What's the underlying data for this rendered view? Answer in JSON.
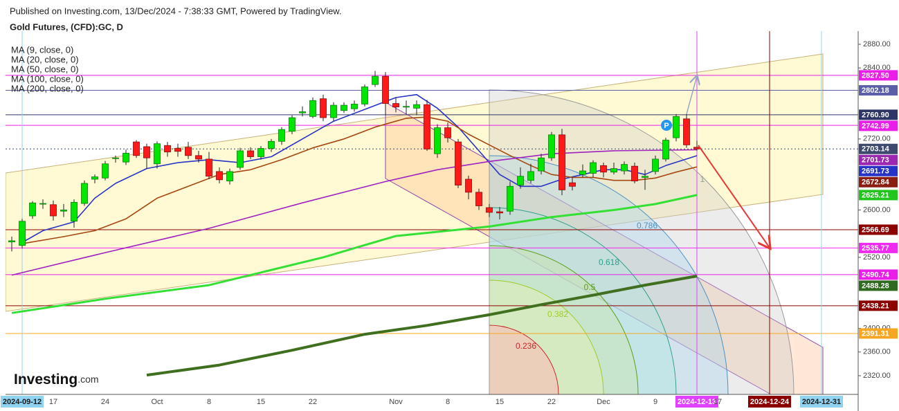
{
  "header": {
    "published": "Published on Investing.com, 13/Dec/2024 - 7:38:33 GMT, Powered by TradingView.",
    "symbol": "Gold Futures, (CFD):GC, D",
    "logo_main": "Investing",
    "logo_suffix": ".com"
  },
  "annotations": {
    "fib_levels": [
      {
        "label": "0.786",
        "color": "#4a90c2"
      },
      {
        "label": "0.618",
        "color": "#2e9e8c"
      },
      {
        "label": "0.5",
        "color": "#5a9e1a"
      },
      {
        "label": "0.382",
        "color": "#9ccc2a"
      },
      {
        "label": "0.236",
        "color": "#c62828"
      }
    ],
    "fib_end": "1",
    "marker": "P"
  },
  "chart_data": {
    "type": "candlestick",
    "up_color": "#00e600",
    "down_color": "#ff1a1a",
    "categories": [
      null,
      "2024-09-12",
      null,
      null,
      "17",
      null,
      null,
      null,
      null,
      "24",
      null,
      null,
      null,
      null,
      "Oct",
      null,
      null,
      null,
      null,
      "8",
      null,
      null,
      null,
      null,
      "15",
      null,
      null,
      null,
      null,
      "22",
      null,
      null,
      null,
      null,
      null,
      null,
      null,
      "Nov",
      null,
      null,
      null,
      null,
      "8",
      null,
      null,
      null,
      null,
      "15",
      null,
      null,
      null,
      null,
      "22",
      null,
      null,
      null,
      null,
      "Dec",
      null,
      null,
      null,
      null,
      "9",
      null,
      null,
      null,
      "2024-12-13",
      null,
      "17",
      null,
      null,
      null,
      null,
      "2024-12-24",
      null,
      null,
      null,
      null,
      "2024-12-31",
      null,
      null,
      null
    ],
    "open": [
      2546,
      2540,
      2590,
      2610,
      2609,
      2598,
      2581,
      2611,
      2652,
      2654,
      2687,
      2681,
      2715,
      2707,
      2678,
      2709,
      2704,
      2706,
      2692,
      2686,
      2665,
      2649,
      2672,
      2700,
      2690,
      2704,
      2716,
      2733,
      2764,
      2758,
      2788,
      2756,
      2768,
      2771,
      2779,
      2812,
      2826,
      2780,
      2774,
      2772,
      2778,
      2695,
      2739,
      2715,
      2652,
      2630,
      2604,
      2597,
      2598,
      2642,
      2650,
      2666,
      2688,
      2727,
      2646,
      2660,
      2662,
      2675,
      2664,
      2666,
      2674,
      2655,
      2665,
      2686,
      2722,
      2754,
      2706,
      null,
      null,
      null,
      null,
      null,
      null,
      null,
      null,
      null,
      null,
      null,
      null,
      null,
      null,
      null
    ],
    "high": [
      2555,
      2585,
      2615,
      2618,
      2616,
      2610,
      2618,
      2650,
      2660,
      2683,
      2692,
      2702,
      2718,
      2712,
      2716,
      2715,
      2712,
      2715,
      2700,
      2698,
      2672,
      2670,
      2705,
      2706,
      2708,
      2720,
      2740,
      2760,
      2775,
      2790,
      2795,
      2782,
      2782,
      2785,
      2812,
      2835,
      2833,
      2790,
      2785,
      2785,
      2786,
      2745,
      2748,
      2720,
      2658,
      2636,
      2610,
      2605,
      2648,
      2672,
      2678,
      2695,
      2732,
      2737,
      2655,
      2677,
      2684,
      2680,
      2680,
      2682,
      2680,
      2668,
      2692,
      2722,
      2762,
      2762,
      2717,
      null,
      null,
      null,
      null,
      null,
      null,
      null,
      null,
      null,
      null,
      null,
      null,
      null,
      null,
      null
    ],
    "low": [
      2530,
      2535,
      2585,
      2602,
      2582,
      2588,
      2570,
      2607,
      2645,
      2650,
      2680,
      2676,
      2688,
      2670,
      2670,
      2690,
      2690,
      2686,
      2680,
      2652,
      2645,
      2643,
      2668,
      2686,
      2685,
      2698,
      2710,
      2728,
      2758,
      2755,
      2750,
      2750,
      2764,
      2766,
      2775,
      2808,
      2760,
      2765,
      2762,
      2760,
      2700,
      2688,
      2714,
      2637,
      2618,
      2600,
      2588,
      2584,
      2592,
      2636,
      2645,
      2660,
      2683,
      2625,
      2633,
      2655,
      2655,
      2655,
      2660,
      2660,
      2645,
      2634,
      2660,
      2682,
      2716,
      2705,
      2700,
      null,
      null,
      null,
      null,
      null,
      null,
      null,
      null,
      null,
      null,
      null,
      null,
      null,
      null,
      null
    ],
    "close": [
      2548,
      2581,
      2612,
      2611,
      2590,
      2600,
      2613,
      2645,
      2656,
      2678,
      2688,
      2696,
      2692,
      2688,
      2712,
      2698,
      2699,
      2692,
      2686,
      2657,
      2651,
      2665,
      2700,
      2690,
      2704,
      2716,
      2736,
      2756,
      2766,
      2785,
      2756,
      2777,
      2777,
      2779,
      2808,
      2826,
      2780,
      2774,
      2775,
      2778,
      2703,
      2739,
      2722,
      2642,
      2630,
      2607,
      2596,
      2595,
      2640,
      2657,
      2665,
      2688,
      2727,
      2634,
      2640,
      2666,
      2680,
      2664,
      2670,
      2677,
      2649,
      2657,
      2686,
      2718,
      2758,
      2710,
      2703.14,
      null,
      null,
      null,
      null,
      null,
      null,
      null,
      null,
      null,
      null,
      null,
      null,
      null,
      null,
      null
    ],
    "series": [
      {
        "name": "MA (9, close, 0)",
        "color": "#2633c4",
        "width": 1.6,
        "x": [
          1,
          3,
          6,
          8,
          10,
          13,
          16,
          19,
          22,
          25,
          28,
          31,
          34,
          37,
          39,
          41,
          43,
          45,
          47,
          49,
          51,
          53,
          55,
          57,
          59,
          61,
          63,
          66
        ],
        "values": [
          2545,
          2565,
          2580,
          2620,
          2645,
          2670,
          2680,
          2685,
          2680,
          2690,
          2720,
          2750,
          2770,
          2790,
          2795,
          2772,
          2740,
          2700,
          2660,
          2640,
          2640,
          2652,
          2660,
          2668,
          2668,
          2660,
          2675,
          2691.73
        ]
      },
      {
        "name": "MA (20, close, 0)",
        "color": "#a5470f",
        "width": 1.6,
        "x": [
          1,
          5,
          8,
          11,
          14,
          17,
          20,
          23,
          26,
          29,
          32,
          35,
          38,
          40,
          42,
          44,
          46,
          48,
          50,
          52,
          54,
          56,
          58,
          60,
          62,
          64,
          66
        ],
        "values": [
          2543,
          2555,
          2565,
          2585,
          2620,
          2640,
          2660,
          2668,
          2685,
          2705,
          2720,
          2740,
          2755,
          2757,
          2750,
          2728,
          2710,
          2692,
          2675,
          2660,
          2655,
          2655,
          2650,
          2650,
          2654,
          2664,
          2672.84
        ]
      },
      {
        "name": "MA (50, close, 0)",
        "color": "#a020c0",
        "width": 1.6,
        "x": [
          0,
          9,
          19,
          28,
          36,
          41,
          46,
          52,
          58,
          66
        ],
        "values": [
          2490,
          2528,
          2569,
          2612,
          2648,
          2668,
          2682,
          2695,
          2700,
          2701.73
        ]
      },
      {
        "name": "MA (100, close, 0)",
        "color": "#33e033",
        "width": 3,
        "x": [
          0,
          9,
          19,
          30,
          37,
          46,
          52,
          58,
          62,
          66
        ],
        "values": [
          2426,
          2450,
          2473,
          2520,
          2556,
          2572,
          2588,
          2600,
          2610,
          2625.21
        ]
      },
      {
        "name": "MA (200, close, 0)",
        "color": "#3f6f1f",
        "width": 4,
        "x": [
          13,
          20,
          27,
          34,
          40,
          46,
          51,
          56,
          61,
          66
        ],
        "values": [
          2321,
          2338,
          2363,
          2390,
          2405,
          2423,
          2440,
          2456,
          2473,
          2488.28
        ]
      }
    ],
    "vlines": [
      {
        "category": 1,
        "color": "#8fd3f0",
        "text_color": "#1a1a1a"
      },
      {
        "category": 66,
        "color": "#e040fb",
        "text_color": "#ffffff"
      },
      {
        "category": 73,
        "color": "#8b0000",
        "text_color": "#ffffff"
      },
      {
        "category": 78,
        "color": "#8fd3f0",
        "text_color": "#1a1a1a"
      }
    ],
    "price_levels": [
      {
        "value": 2827.5,
        "label": "2827.50",
        "color": "#e91ee9",
        "line": "solid"
      },
      {
        "value": 2802.18,
        "label": "2802.18",
        "color": "#5b5fa8",
        "line": "solid"
      },
      {
        "value": 2760.9,
        "label": "2760.90",
        "color": "#2d3566",
        "line": "solid"
      },
      {
        "value": 2742.99,
        "label": "2742.99",
        "color": "#e91ee9",
        "line": "solid"
      },
      {
        "value": 2703.14,
        "label": "2703.14",
        "color": "#3d4a6e",
        "line": "dotted"
      },
      {
        "value": 2701.73,
        "label": "2701.73",
        "color": "#9c27b0",
        "line": "none"
      },
      {
        "value": 2691.73,
        "label": "2691.73",
        "color": "#2633c4",
        "line": "none"
      },
      {
        "value": 2672.84,
        "label": "2672.84",
        "color": "#8b1e12",
        "line": "none"
      },
      {
        "value": 2625.21,
        "label": "2625.21",
        "color": "#22c41e",
        "line": "none"
      },
      {
        "value": 2566.69,
        "label": "2566.69",
        "color": "#8b0000",
        "line": "solid"
      },
      {
        "value": 2535.77,
        "label": "2535.77",
        "color": "#ee2bee",
        "line": "solid"
      },
      {
        "value": 2490.74,
        "label": "2490.74",
        "color": "#e91ee9",
        "line": "solid"
      },
      {
        "value": 2488.28,
        "label": "2488.28",
        "color": "#2e6b1e",
        "line": "none"
      },
      {
        "value": 2438.21,
        "label": "2438.21",
        "color": "#8b0000",
        "line": "solid"
      },
      {
        "value": 2391.31,
        "label": "2391.31",
        "color": "#f5a623",
        "line": "solid"
      }
    ],
    "ylim": [
      2288.4,
      2902.2
    ],
    "yticks": [
      {
        "value": 2880,
        "label": "2880.00"
      },
      {
        "value": 2840,
        "label": "2840.00"
      },
      {
        "value": 2720,
        "label": "2720.00"
      },
      {
        "value": 2600,
        "label": "2600.00"
      },
      {
        "value": 2520,
        "label": "2520.00"
      },
      {
        "value": 2400,
        "label": "2400.00"
      },
      {
        "value": 2360,
        "label": "2360.00"
      },
      {
        "value": 2320,
        "label": "2320.00"
      }
    ]
  }
}
